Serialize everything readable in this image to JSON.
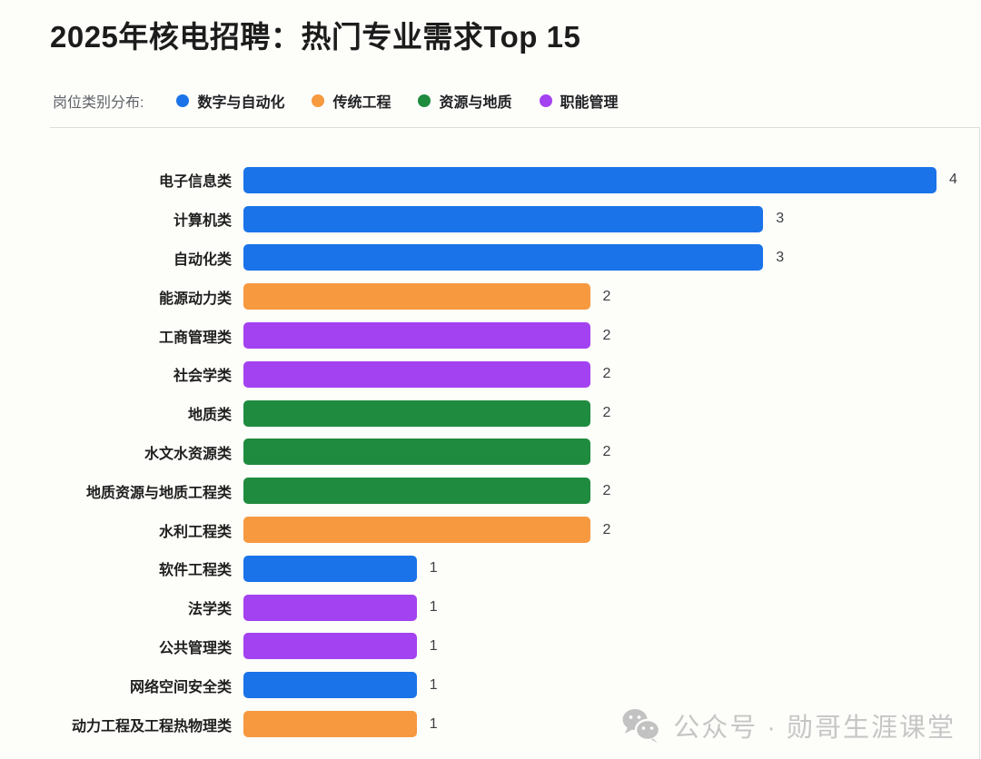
{
  "title": "2025年核电招聘：热门专业需求Top 15",
  "legend": {
    "label": "岗位类别分布:",
    "items": [
      {
        "name": "数字与自动化",
        "color": "#1a73e8"
      },
      {
        "name": "传统工程",
        "color": "#f6993f"
      },
      {
        "name": "资源与地质",
        "color": "#1f8b3e"
      },
      {
        "name": "职能管理",
        "color": "#a342f0"
      }
    ]
  },
  "chart_data": {
    "type": "bar",
    "orientation": "horizontal",
    "title": "2025年核电招聘：热门专业需求Top 15",
    "xlim": [
      0,
      4
    ],
    "grid": false,
    "legend_position": "top",
    "series_colors": {
      "数字与自动化": "#1a73e8",
      "传统工程": "#f6993f",
      "资源与地质": "#1f8b3e",
      "职能管理": "#a342f0"
    },
    "bars": [
      {
        "label": "电子信息类",
        "value": 4,
        "category": "数字与自动化"
      },
      {
        "label": "计算机类",
        "value": 3,
        "category": "数字与自动化"
      },
      {
        "label": "自动化类",
        "value": 3,
        "category": "数字与自动化"
      },
      {
        "label": "能源动力类",
        "value": 2,
        "category": "传统工程"
      },
      {
        "label": "工商管理类",
        "value": 2,
        "category": "职能管理"
      },
      {
        "label": "社会学类",
        "value": 2,
        "category": "职能管理"
      },
      {
        "label": "地质类",
        "value": 2,
        "category": "资源与地质"
      },
      {
        "label": "水文水资源类",
        "value": 2,
        "category": "资源与地质"
      },
      {
        "label": "地质资源与地质工程类",
        "value": 2,
        "category": "资源与地质"
      },
      {
        "label": "水利工程类",
        "value": 2,
        "category": "传统工程"
      },
      {
        "label": "软件工程类",
        "value": 1,
        "category": "数字与自动化"
      },
      {
        "label": "法学类",
        "value": 1,
        "category": "职能管理"
      },
      {
        "label": "公共管理类",
        "value": 1,
        "category": "职能管理"
      },
      {
        "label": "网络空间安全类",
        "value": 1,
        "category": "数字与自动化"
      },
      {
        "label": "动力工程及工程热物理类",
        "value": 1,
        "category": "传统工程"
      }
    ]
  },
  "watermark": {
    "text": "公众号 · 勋哥生涯课堂"
  },
  "colors": {
    "title_text": "#1c1c1c",
    "legend_label_text": "#5f6368",
    "bar_label_text": "#1f1f1f",
    "value_text": "#3c4043",
    "panel_border": "#dcdcdc",
    "watermark_text": "#c6c6c6",
    "background": "#fdfdfa"
  }
}
